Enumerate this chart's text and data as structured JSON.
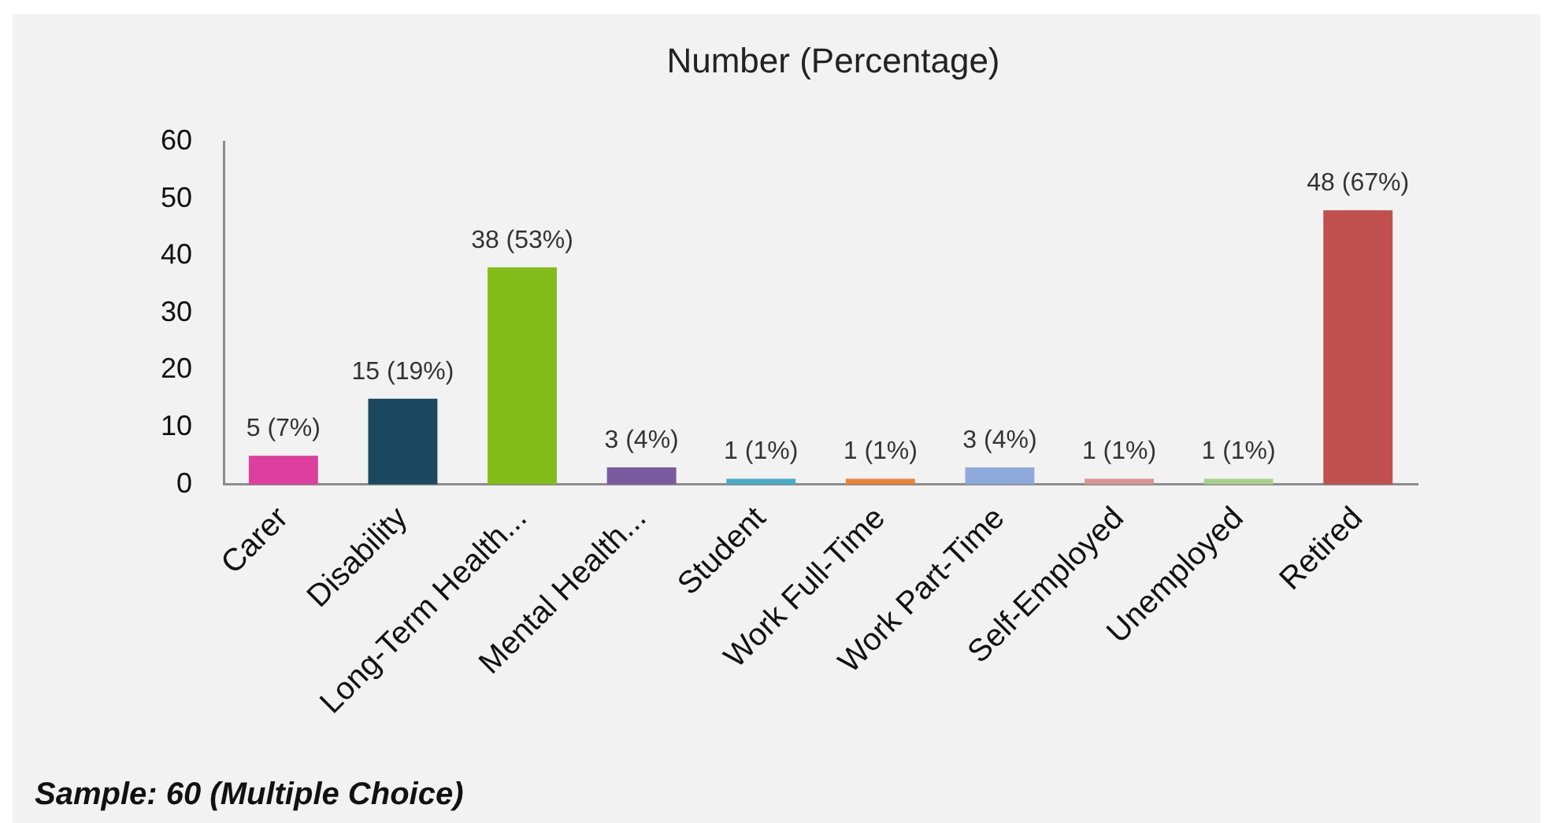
{
  "chart_data": {
    "type": "bar",
    "title": "Number (Percentage)",
    "categories": [
      "Carer",
      "Disability",
      "Long-Term Health...",
      "Mental Health...",
      "Student",
      "Work Full-Time",
      "Work Part-Time",
      "Self-Employed",
      "Unemployed",
      "Retired"
    ],
    "values": [
      5,
      15,
      38,
      3,
      1,
      1,
      3,
      1,
      1,
      48
    ],
    "colors": [
      "#dc3f9e",
      "#1b4860",
      "#84bc1c",
      "#7b5ba0",
      "#4bacc6",
      "#e8833c",
      "#8eaadb",
      "#d99694",
      "#a9d08e",
      "#c0504d"
    ],
    "value_labels": [
      "5 (7%)",
      "15 (19%)",
      "38 (53%)",
      "3 (4%)",
      "1 (1%)",
      "1 (1%)",
      "3 (4%)",
      "1 (1%)",
      "1 (1%)",
      "48 (67%)"
    ],
    "ylim": [
      0,
      60
    ],
    "yticks": [
      0,
      10,
      20,
      30,
      40,
      50,
      60
    ],
    "grid": false,
    "legend": false,
    "annotations": [
      "Sample: 60 (Multiple Choice)"
    ]
  }
}
